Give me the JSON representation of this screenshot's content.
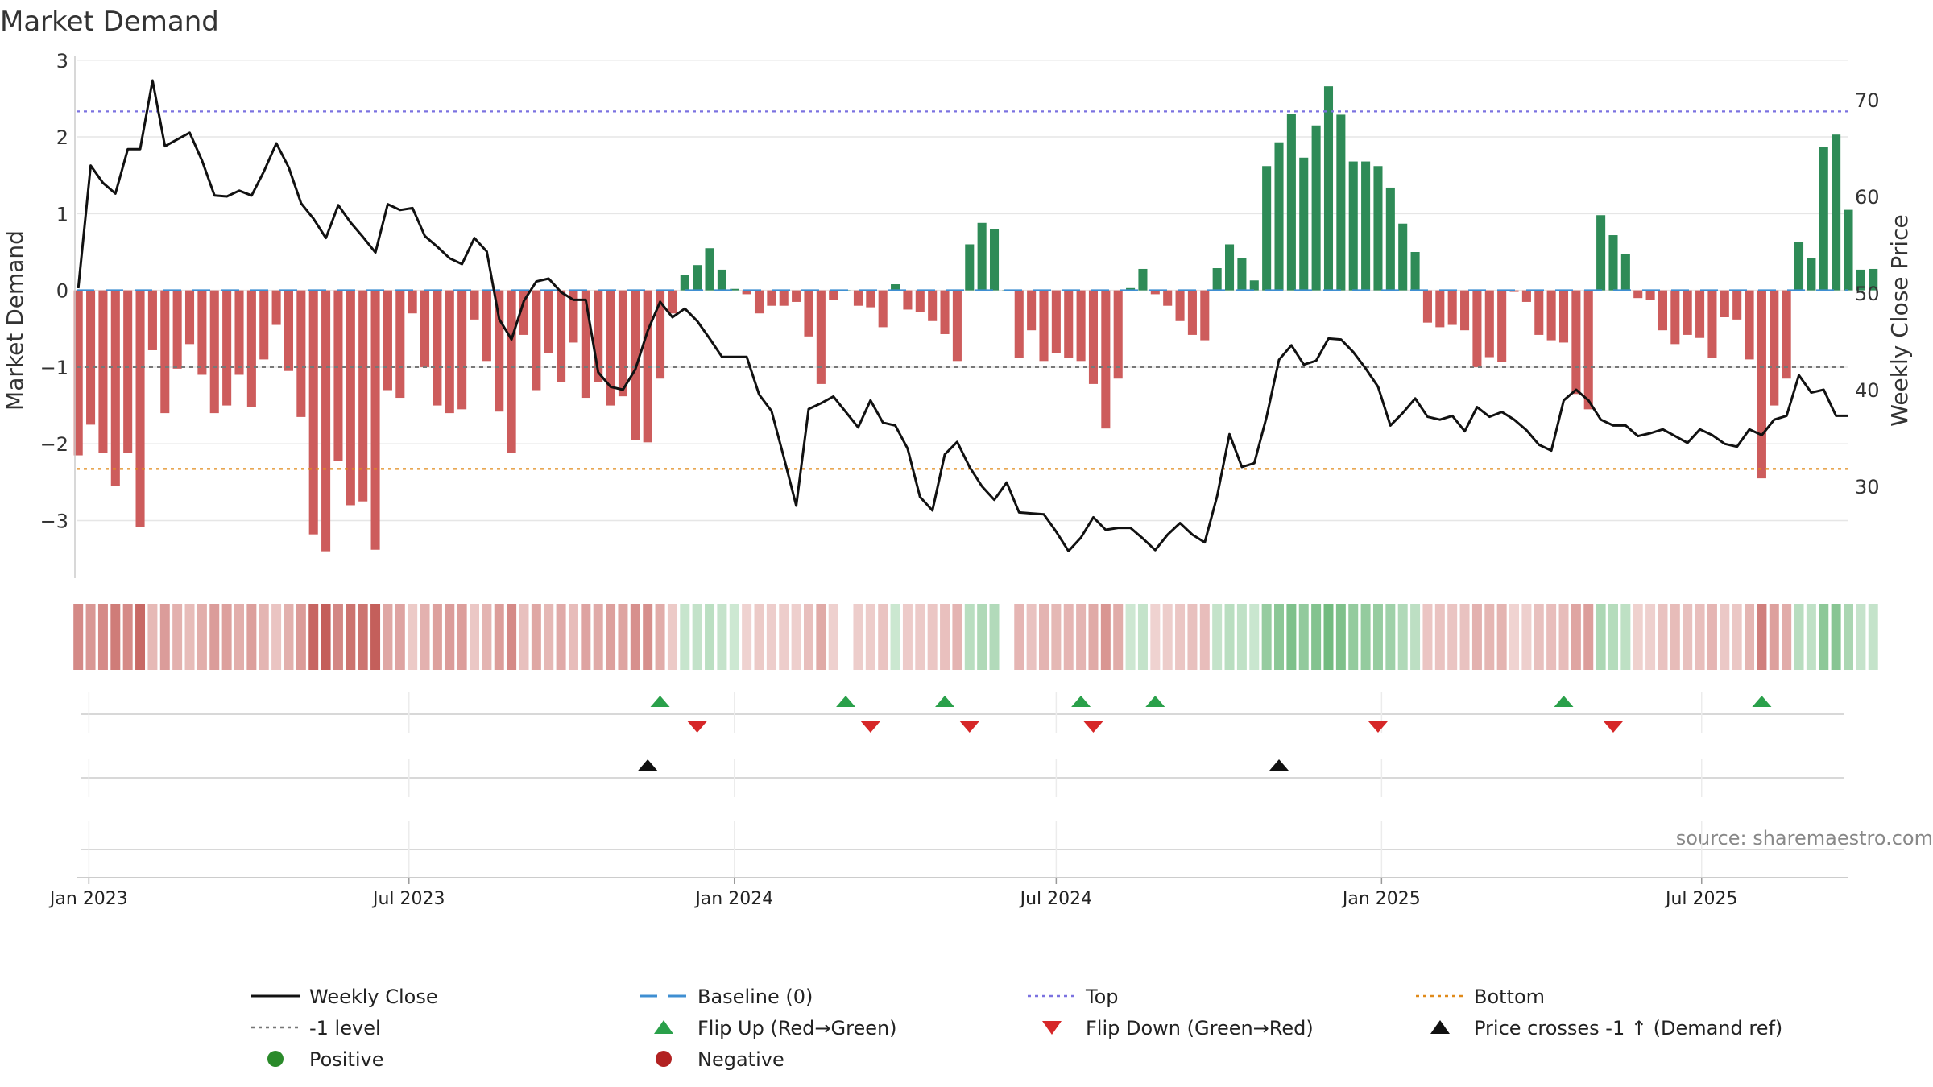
{
  "chart_data": {
    "type": "bar",
    "title": "Market Demand",
    "ylabel": "Market Demand",
    "y2label": "Weekly Close Price",
    "ylim": [
      -3.75,
      3.05
    ],
    "y2lim": [
      20.5,
      74.5
    ],
    "yticks": [
      3,
      2,
      1,
      0,
      -1,
      -2,
      -3
    ],
    "ytick_labels": [
      "3",
      "2",
      "1",
      "0",
      "−1",
      "−2",
      "−3"
    ],
    "y2ticks": [
      70,
      60,
      50,
      40,
      30
    ],
    "y2tick_labels": [
      "70",
      "60",
      "50",
      "40",
      "30"
    ],
    "x_start": "2022-12-25",
    "x_end": "2025-09-22",
    "xticks": [
      {
        "date": "2023-01-01",
        "label": "Jan 2023"
      },
      {
        "date": "2023-07-01",
        "label": "Jul 2023"
      },
      {
        "date": "2024-01-01",
        "label": "Jan 2024"
      },
      {
        "date": "2024-07-01",
        "label": "Jul 2024"
      },
      {
        "date": "2025-01-01",
        "label": "Jan 2025"
      },
      {
        "date": "2025-07-01",
        "label": "Jul 2025"
      }
    ],
    "start_week": "2022-12-26",
    "weekly_demand": [
      -2.15,
      -1.75,
      -2.12,
      -2.55,
      -2.12,
      -3.08,
      -0.78,
      -1.6,
      -1.02,
      -0.7,
      -1.1,
      -1.6,
      -1.5,
      -1.1,
      -1.52,
      -0.9,
      -0.45,
      -1.05,
      -1.65,
      -3.18,
      -3.4,
      -2.22,
      -2.8,
      -2.75,
      -3.38,
      -1.3,
      -1.4,
      -0.3,
      -1.0,
      -1.5,
      -1.6,
      -1.55,
      -0.38,
      -0.92,
      -1.58,
      -2.12,
      -0.58,
      -1.3,
      -0.82,
      -1.2,
      -0.68,
      -1.4,
      -1.2,
      -1.5,
      -1.38,
      -1.95,
      -1.98,
      -1.15,
      -0.3,
      0.2,
      0.33,
      0.55,
      0.27,
      0.02,
      -0.05,
      -0.3,
      -0.2,
      -0.2,
      -0.15,
      -0.6,
      -1.22,
      -0.12,
      0.0,
      -0.2,
      -0.22,
      -0.48,
      0.08,
      -0.25,
      -0.28,
      -0.4,
      -0.57,
      -0.92,
      0.6,
      0.88,
      0.8,
      0.0,
      -0.88,
      -0.52,
      -0.92,
      -0.82,
      -0.88,
      -0.92,
      -1.22,
      -1.8,
      -1.15,
      0.03,
      0.28,
      -0.05,
      -0.2,
      -0.4,
      -0.58,
      -0.65,
      0.29,
      0.6,
      0.42,
      0.13,
      1.62,
      1.93,
      2.3,
      1.73,
      2.15,
      2.66,
      2.29,
      1.68,
      1.68,
      1.62,
      1.34,
      0.87,
      0.5,
      -0.42,
      -0.48,
      -0.45,
      -0.52,
      -1.0,
      -0.87,
      -0.93,
      -0.02,
      -0.15,
      -0.58,
      -0.65,
      -0.68,
      -1.35,
      -1.55,
      0.98,
      0.72,
      0.47,
      -0.1,
      -0.12,
      -0.52,
      -0.7,
      -0.58,
      -0.62,
      -0.88,
      -0.35,
      -0.38,
      -0.9,
      -2.45,
      -1.5,
      -1.15,
      0.63,
      0.42,
      1.87,
      2.03,
      1.05,
      0.27,
      0.28
    ],
    "series": [
      {
        "name": "Weekly Close",
        "points": [
          [
            "2022-12-26",
            50.5
          ],
          [
            "2023-01-02",
            63.2
          ],
          [
            "2023-01-09",
            61.4
          ],
          [
            "2023-01-16",
            60.3
          ],
          [
            "2023-01-23",
            64.9
          ],
          [
            "2023-01-30",
            64.9
          ],
          [
            "2023-02-06",
            72.0
          ],
          [
            "2023-02-13",
            65.2
          ],
          [
            "2023-02-20",
            65.9
          ],
          [
            "2023-02-27",
            66.6
          ],
          [
            "2023-03-06",
            63.7
          ],
          [
            "2023-03-13",
            60.1
          ],
          [
            "2023-03-20",
            60.0
          ],
          [
            "2023-03-27",
            60.6
          ],
          [
            "2023-04-03",
            60.1
          ],
          [
            "2023-04-10",
            62.6
          ],
          [
            "2023-04-17",
            65.5
          ],
          [
            "2023-04-24",
            63.0
          ],
          [
            "2023-05-01",
            59.3
          ],
          [
            "2023-05-08",
            57.7
          ],
          [
            "2023-05-15",
            55.7
          ],
          [
            "2023-05-22",
            59.1
          ],
          [
            "2023-05-29",
            57.3
          ],
          [
            "2023-06-05",
            55.8
          ],
          [
            "2023-06-12",
            54.2
          ],
          [
            "2023-06-19",
            59.2
          ],
          [
            "2023-06-26",
            58.6
          ],
          [
            "2023-07-03",
            58.8
          ],
          [
            "2023-07-10",
            55.9
          ],
          [
            "2023-07-17",
            54.8
          ],
          [
            "2023-07-24",
            53.6
          ],
          [
            "2023-07-31",
            53.0
          ],
          [
            "2023-08-07",
            55.7
          ],
          [
            "2023-08-14",
            54.3
          ],
          [
            "2023-08-21",
            47.3
          ],
          [
            "2023-08-28",
            45.2
          ],
          [
            "2023-09-04",
            49.2
          ],
          [
            "2023-09-11",
            51.2
          ],
          [
            "2023-09-18",
            51.5
          ],
          [
            "2023-09-25",
            50.1
          ],
          [
            "2023-10-02",
            49.3
          ],
          [
            "2023-10-09",
            49.3
          ],
          [
            "2023-10-16",
            41.8
          ],
          [
            "2023-10-23",
            40.3
          ],
          [
            "2023-10-30",
            40.0
          ],
          [
            "2023-11-06",
            42.1
          ],
          [
            "2023-11-13",
            46.1
          ],
          [
            "2023-11-20",
            49.1
          ],
          [
            "2023-11-27",
            47.5
          ],
          [
            "2023-12-04",
            48.4
          ],
          [
            "2023-12-11",
            47.1
          ],
          [
            "2023-12-18",
            45.3
          ],
          [
            "2023-12-25",
            43.4
          ],
          [
            "2024-01-01",
            43.4
          ],
          [
            "2024-01-08",
            43.4
          ],
          [
            "2024-01-15",
            39.5
          ],
          [
            "2024-01-22",
            37.8
          ],
          [
            "2024-01-29",
            33.0
          ],
          [
            "2024-02-05",
            28.0
          ],
          [
            "2024-02-12",
            38.0
          ],
          [
            "2024-02-19",
            38.6
          ],
          [
            "2024-02-26",
            39.3
          ],
          [
            "2024-03-04",
            37.7
          ],
          [
            "2024-03-11",
            36.1
          ],
          [
            "2024-03-18",
            38.9
          ],
          [
            "2024-03-25",
            36.6
          ],
          [
            "2024-04-01",
            36.3
          ],
          [
            "2024-04-08",
            33.9
          ],
          [
            "2024-04-15",
            28.9
          ],
          [
            "2024-04-22",
            27.5
          ],
          [
            "2024-04-29",
            33.3
          ],
          [
            "2024-05-06",
            34.6
          ],
          [
            "2024-05-13",
            32.0
          ],
          [
            "2024-05-20",
            30.0
          ],
          [
            "2024-05-27",
            28.6
          ],
          [
            "2024-06-03",
            30.4
          ],
          [
            "2024-06-10",
            27.3
          ],
          [
            "2024-06-17",
            27.2
          ],
          [
            "2024-06-24",
            27.1
          ],
          [
            "2024-07-01",
            25.3
          ],
          [
            "2024-07-08",
            23.3
          ],
          [
            "2024-07-15",
            24.7
          ],
          [
            "2024-07-22",
            26.8
          ],
          [
            "2024-07-29",
            25.5
          ],
          [
            "2024-08-05",
            25.7
          ],
          [
            "2024-08-12",
            25.7
          ],
          [
            "2024-08-19",
            24.6
          ],
          [
            "2024-08-26",
            23.4
          ],
          [
            "2024-09-02",
            25.0
          ],
          [
            "2024-09-09",
            26.2
          ],
          [
            "2024-09-16",
            25.0
          ],
          [
            "2024-09-23",
            24.2
          ],
          [
            "2024-09-30",
            29.0
          ],
          [
            "2024-10-07",
            35.4
          ],
          [
            "2024-10-14",
            32.0
          ],
          [
            "2024-10-21",
            32.4
          ],
          [
            "2024-10-28",
            37.2
          ],
          [
            "2024-11-04",
            43.1
          ],
          [
            "2024-11-11",
            44.6
          ],
          [
            "2024-11-18",
            42.6
          ],
          [
            "2024-11-25",
            43.0
          ],
          [
            "2024-12-02",
            45.3
          ],
          [
            "2024-12-09",
            45.2
          ],
          [
            "2024-12-16",
            43.9
          ],
          [
            "2024-12-23",
            42.2
          ],
          [
            "2024-12-30",
            40.3
          ],
          [
            "2025-01-06",
            36.3
          ],
          [
            "2025-01-13",
            37.6
          ],
          [
            "2025-01-20",
            39.1
          ],
          [
            "2025-01-27",
            37.2
          ],
          [
            "2025-02-03",
            36.9
          ],
          [
            "2025-02-10",
            37.3
          ],
          [
            "2025-02-17",
            35.7
          ],
          [
            "2025-02-24",
            38.2
          ],
          [
            "2025-03-03",
            37.2
          ],
          [
            "2025-03-10",
            37.7
          ],
          [
            "2025-03-17",
            36.9
          ],
          [
            "2025-03-24",
            35.8
          ],
          [
            "2025-03-31",
            34.3
          ],
          [
            "2025-04-07",
            33.7
          ],
          [
            "2025-04-14",
            38.9
          ],
          [
            "2025-04-21",
            40.0
          ],
          [
            "2025-04-28",
            38.9
          ],
          [
            "2025-05-05",
            36.9
          ],
          [
            "2025-05-12",
            36.3
          ],
          [
            "2025-05-19",
            36.3
          ],
          [
            "2025-05-26",
            35.2
          ],
          [
            "2025-06-02",
            35.5
          ],
          [
            "2025-06-09",
            35.9
          ],
          [
            "2025-06-16",
            35.2
          ],
          [
            "2025-06-23",
            34.5
          ],
          [
            "2025-06-30",
            35.9
          ],
          [
            "2025-07-07",
            35.3
          ],
          [
            "2025-07-14",
            34.4
          ],
          [
            "2025-07-21",
            34.1
          ],
          [
            "2025-07-28",
            35.9
          ],
          [
            "2025-08-04",
            35.3
          ],
          [
            "2025-08-11",
            36.9
          ],
          [
            "2025-08-18",
            37.3
          ],
          [
            "2025-08-25",
            41.5
          ],
          [
            "2025-09-01",
            39.7
          ],
          [
            "2025-09-08",
            40.0
          ],
          [
            "2025-09-15",
            37.3
          ],
          [
            "2025-09-22",
            37.3
          ]
        ]
      }
    ],
    "reference_lines": [
      {
        "name": "Baseline (0)",
        "axis": "left",
        "value": 0,
        "color": "#3f8fd2"
      },
      {
        "name": "-1 level",
        "axis": "left",
        "value": -1,
        "color": "#777777"
      },
      {
        "name": "Top",
        "axis": "right",
        "value": 68.8,
        "color": "#7b72e0"
      },
      {
        "name": "Bottom",
        "axis": "right",
        "value": 31.8,
        "color": "#e08a1a"
      }
    ],
    "flip_up_dates": [
      "2023-11-20",
      "2024-03-04",
      "2024-04-29",
      "2024-07-15",
      "2024-08-26",
      "2025-04-14",
      "2025-08-04"
    ],
    "flip_down_dates": [
      "2023-12-11",
      "2024-03-18",
      "2024-05-13",
      "2024-07-22",
      "2024-12-30",
      "2025-05-12"
    ],
    "price_cross_dates": [
      "2023-11-13",
      "2024-11-04"
    ],
    "source": "source: sharemaestro.com",
    "legend_position": "bottom",
    "legend": [
      {
        "label": "Weekly Close",
        "kind": "line",
        "color": "#111111"
      },
      {
        "label": "Baseline (0)",
        "kind": "dash",
        "color": "#3f8fd2"
      },
      {
        "label": "Top",
        "kind": "dot",
        "color": "#7b72e0"
      },
      {
        "label": "Bottom",
        "kind": "dot",
        "color": "#e08a1a"
      },
      {
        "label": "-1 level",
        "kind": "dot",
        "color": "#777777"
      },
      {
        "label": "Flip Up (Red→Green)",
        "kind": "tri-up",
        "color": "#2aa04a"
      },
      {
        "label": "Flip Down (Green→Red)",
        "kind": "tri-down",
        "color": "#d62728"
      },
      {
        "label": "Price crosses -1 ↑ (Demand ref)",
        "kind": "tri-up",
        "color": "#111111"
      },
      {
        "label": "Positive",
        "kind": "circle",
        "color": "#2a8a2a"
      },
      {
        "label": "Negative",
        "kind": "circle",
        "color": "#b22222"
      }
    ],
    "colors": {
      "positive_bar": "#2e8b57",
      "negative_bar": "#cd5c5c",
      "price_line": "#111111",
      "grid": "#e6e6e6",
      "axis": "#cccccc"
    }
  }
}
